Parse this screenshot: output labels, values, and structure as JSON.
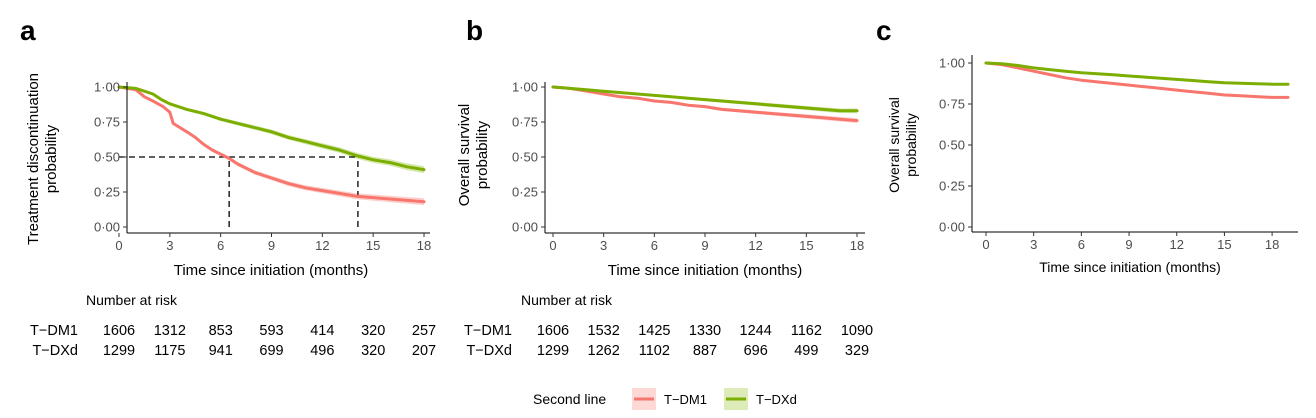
{
  "colors": {
    "tdm1": "#F8766D",
    "tdxd": "#7CAE00",
    "tdm1_band": "#FBC9C4",
    "tdxd_band": "#CFE39E"
  },
  "panel_letters": [
    "a",
    "b",
    "c"
  ],
  "legend": {
    "title": "Second line",
    "items": [
      "T−DM1",
      "T−DXd"
    ]
  },
  "chart_data": [
    {
      "type": "line",
      "panel": "a",
      "title": "",
      "xlabel": "Time since initiation (months)",
      "ylabel_lines": [
        "Treatment discontinuation",
        "probability"
      ],
      "xlim": [
        0,
        18
      ],
      "ylim": [
        0,
        1
      ],
      "xticks": [
        0,
        3,
        6,
        9,
        12,
        15,
        18
      ],
      "xtick_labels": [
        "0",
        "3",
        "6",
        "9",
        "12",
        "15",
        "18"
      ],
      "yticks": [
        0,
        0.25,
        0.5,
        0.75,
        1
      ],
      "ytick_labels": [
        "0·00",
        "0·25",
        "0·50",
        "0·75",
        "1·00"
      ],
      "series": [
        {
          "name": "T−DM1",
          "color": "#F8766D",
          "band": true,
          "x": [
            0,
            1,
            1.5,
            2,
            2.3,
            2.6,
            3,
            3.2,
            3.6,
            4,
            4.5,
            5,
            5.5,
            6,
            6.5,
            7,
            7.5,
            8,
            9,
            10,
            11,
            12,
            13,
            14,
            15,
            16,
            17,
            18
          ],
          "y": [
            1,
            0.98,
            0.93,
            0.9,
            0.88,
            0.86,
            0.82,
            0.74,
            0.71,
            0.68,
            0.64,
            0.59,
            0.55,
            0.52,
            0.49,
            0.45,
            0.42,
            0.39,
            0.35,
            0.31,
            0.28,
            0.26,
            0.24,
            0.22,
            0.21,
            0.2,
            0.19,
            0.18
          ]
        },
        {
          "name": "T−DXd",
          "color": "#7CAE00",
          "band": true,
          "x": [
            0,
            1,
            1.5,
            2,
            2.5,
            3,
            4,
            5,
            6,
            7,
            8,
            9,
            10,
            11,
            12,
            13,
            14,
            15,
            16,
            17,
            18
          ],
          "y": [
            1,
            0.99,
            0.97,
            0.95,
            0.91,
            0.88,
            0.84,
            0.81,
            0.77,
            0.74,
            0.71,
            0.68,
            0.64,
            0.61,
            0.58,
            0.55,
            0.51,
            0.48,
            0.46,
            0.43,
            0.41
          ]
        }
      ],
      "reference_lines": [
        {
          "kind": "horizontal",
          "y": 0.5,
          "x_from": 0,
          "x_to": 14.1
        },
        {
          "kind": "vertical",
          "x": 6.5,
          "y_from": 0,
          "y_to": 0.5
        },
        {
          "kind": "vertical",
          "x": 14.1,
          "y_from": 0,
          "y_to": 0.5
        }
      ]
    },
    {
      "type": "line",
      "panel": "b",
      "title": "",
      "xlabel": "Time since initiation (months)",
      "ylabel_lines": [
        "Overall survival",
        "probability"
      ],
      "xlim": [
        0,
        18
      ],
      "ylim": [
        0,
        1
      ],
      "xticks": [
        0,
        3,
        6,
        9,
        12,
        15,
        18
      ],
      "xtick_labels": [
        "0",
        "3",
        "6",
        "9",
        "12",
        "15",
        "18"
      ],
      "yticks": [
        0,
        0.25,
        0.5,
        0.75,
        1
      ],
      "ytick_labels": [
        "0·00",
        "0·25",
        "0·50",
        "0·75",
        "1·00"
      ],
      "series": [
        {
          "name": "T−DM1",
          "color": "#F8766D",
          "band": true,
          "x": [
            0,
            1,
            2,
            3,
            4,
            5,
            6,
            7,
            8,
            9,
            10,
            11,
            12,
            13,
            14,
            15,
            16,
            17,
            18
          ],
          "y": [
            1,
            0.99,
            0.97,
            0.95,
            0.93,
            0.92,
            0.9,
            0.89,
            0.87,
            0.86,
            0.84,
            0.83,
            0.82,
            0.81,
            0.8,
            0.79,
            0.78,
            0.77,
            0.76
          ]
        },
        {
          "name": "T−DXd",
          "color": "#7CAE00",
          "band": true,
          "x": [
            0,
            1,
            2,
            3,
            4,
            5,
            6,
            7,
            8,
            9,
            10,
            11,
            12,
            13,
            14,
            15,
            16,
            17,
            18
          ],
          "y": [
            1,
            0.99,
            0.98,
            0.97,
            0.96,
            0.95,
            0.94,
            0.93,
            0.92,
            0.91,
            0.9,
            0.89,
            0.88,
            0.87,
            0.86,
            0.85,
            0.84,
            0.83,
            0.83
          ]
        }
      ],
      "reference_lines": []
    },
    {
      "type": "line",
      "panel": "c",
      "title": "",
      "xlabel": "Time since initiation (months)",
      "ylabel_lines": [
        "Overall survival",
        "probability"
      ],
      "xlim": [
        0,
        19
      ],
      "ylim": [
        0,
        1
      ],
      "xticks": [
        0,
        3,
        6,
        9,
        12,
        15,
        18
      ],
      "xtick_labels": [
        "0",
        "3",
        "6",
        "9",
        "12",
        "15",
        "18"
      ],
      "yticks": [
        0,
        0.25,
        0.5,
        0.75,
        1
      ],
      "ytick_labels": [
        "0·00",
        "0·25",
        "0·50",
        "0·75",
        "1·00"
      ],
      "series": [
        {
          "name": "T−DM1",
          "color": "#F8766D",
          "band": false,
          "x": [
            0,
            1,
            2,
            3,
            4,
            5,
            6,
            7,
            8,
            9,
            10,
            11,
            12,
            13,
            14,
            15,
            16,
            17,
            18,
            19
          ],
          "y": [
            1,
            0.99,
            0.97,
            0.95,
            0.93,
            0.91,
            0.895,
            0.885,
            0.875,
            0.865,
            0.855,
            0.845,
            0.835,
            0.825,
            0.815,
            0.805,
            0.8,
            0.795,
            0.79,
            0.79
          ]
        },
        {
          "name": "T−DXd",
          "color": "#7CAE00",
          "band": false,
          "x": [
            0,
            1,
            2,
            3,
            4,
            5,
            6,
            7,
            8,
            9,
            10,
            11,
            12,
            13,
            14,
            15,
            16,
            17,
            18,
            19
          ],
          "y": [
            1,
            0.995,
            0.985,
            0.97,
            0.96,
            0.95,
            0.94,
            0.935,
            0.928,
            0.921,
            0.914,
            0.907,
            0.9,
            0.893,
            0.886,
            0.88,
            0.876,
            0.873,
            0.871,
            0.87
          ]
        }
      ],
      "reference_lines": []
    }
  ],
  "risk_tables": [
    {
      "panel": "a",
      "title": "Number at risk",
      "rows": [
        {
          "name": "T−DM1",
          "values": [
            "1606",
            "1312",
            "853",
            "593",
            "414",
            "320",
            "257"
          ]
        },
        {
          "name": "T−DXd",
          "values": [
            "1299",
            "1175",
            "941",
            "699",
            "496",
            "320",
            "207"
          ]
        }
      ]
    },
    {
      "panel": "b",
      "title": "Number at risk",
      "rows": [
        {
          "name": "T−DM1",
          "values": [
            "1606",
            "1532",
            "1425",
            "1330",
            "1244",
            "1162",
            "1090"
          ]
        },
        {
          "name": "T−DXd",
          "values": [
            "1299",
            "1262",
            "1102",
            "887",
            "696",
            "499",
            "329"
          ]
        }
      ]
    }
  ]
}
